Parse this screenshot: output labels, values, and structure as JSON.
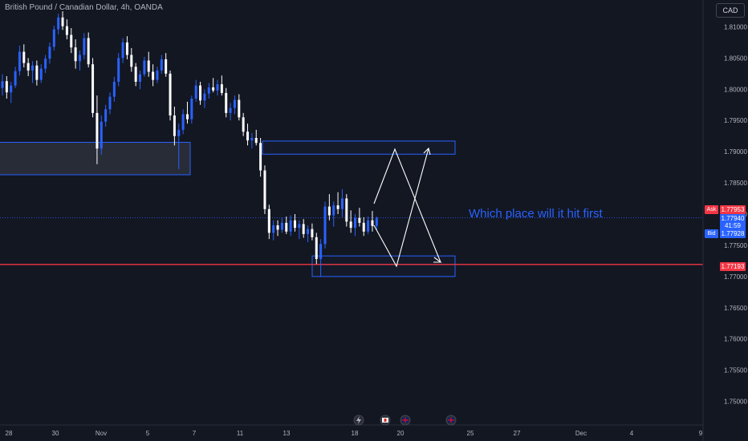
{
  "header": {
    "title": "British Pound / Canadian Dollar, 4h, OANDA",
    "currency_button": "CAD"
  },
  "annotation": {
    "text": "Which place will it hit first"
  },
  "price_labels": {
    "ask_label": "Ask",
    "ask_price": "1.77953",
    "last_price": "1.77940",
    "countdown": "41:59",
    "bid_label": "Bid",
    "bid_price": "1.77928",
    "red_line_price": "1.77193"
  },
  "colors": {
    "background": "#131722",
    "up_candle": "#2962ff",
    "down_candle": "#ffffff",
    "red_line": "#f23645",
    "box_border": "#2962ff",
    "ask_tag": "#f23645",
    "bid_tag": "#2962ff"
  },
  "event_icons": [
    "flash-icon",
    "canada-flag-icon",
    "uk-flag-icon",
    "uk-flag-icon"
  ],
  "chart_data": {
    "type": "candlestick",
    "instrument": "British Pound / Canadian Dollar",
    "timeframe": "4h",
    "ylim": [
      1.7475,
      1.8125
    ],
    "y_ticks": [
      "1.81000",
      "1.80500",
      "1.80000",
      "1.79500",
      "1.79000",
      "1.78500",
      "1.78000",
      "1.77500",
      "1.77000",
      "1.76500",
      "1.76000",
      "1.75500",
      "1.75000"
    ],
    "x_ticks": [
      "28",
      "30",
      "Nov",
      "5",
      "7",
      "11",
      "13",
      "18",
      "20",
      "25",
      "27",
      "Dec",
      "4",
      "9"
    ],
    "horizontal_lines": [
      {
        "price": 1.77193,
        "color": "#f23645"
      },
      {
        "price": 1.7794,
        "style": "dotted"
      }
    ],
    "zones": [
      {
        "price_top": 1.7915,
        "price_bottom": 1.7863
      },
      {
        "price_top": 1.7917,
        "price_bottom": 1.7896
      },
      {
        "price_top": 1.7733,
        "price_bottom": 1.77
      }
    ],
    "candles": [
      [
        1.8002,
        1.8024,
        1.799,
        1.8013
      ],
      [
        1.8013,
        1.8021,
        1.7985,
        1.7995
      ],
      [
        1.7995,
        1.8012,
        1.7978,
        1.8006
      ],
      [
        1.8006,
        1.8036,
        1.8002,
        1.8029
      ],
      [
        1.8029,
        1.807,
        1.8022,
        1.806
      ],
      [
        1.806,
        1.8072,
        1.8035,
        1.8042
      ],
      [
        1.8042,
        1.805,
        1.8021,
        1.803
      ],
      [
        1.803,
        1.8045,
        1.801,
        1.8038
      ],
      [
        1.8038,
        1.8046,
        1.8006,
        1.8015
      ],
      [
        1.8015,
        1.804,
        1.801,
        1.8033
      ],
      [
        1.8033,
        1.8055,
        1.8026,
        1.8049
      ],
      [
        1.8049,
        1.8075,
        1.8041,
        1.8068
      ],
      [
        1.8068,
        1.8102,
        1.8062,
        1.8096
      ],
      [
        1.8096,
        1.8121,
        1.8088,
        1.8115
      ],
      [
        1.8115,
        1.8125,
        1.8095,
        1.8101
      ],
      [
        1.8101,
        1.8112,
        1.808,
        1.8087
      ],
      [
        1.8087,
        1.8098,
        1.8058,
        1.8067
      ],
      [
        1.8067,
        1.808,
        1.8033,
        1.8045
      ],
      [
        1.8045,
        1.8062,
        1.803,
        1.8055
      ],
      [
        1.8055,
        1.809,
        1.8048,
        1.8082
      ],
      [
        1.8082,
        1.8091,
        1.8035,
        1.804
      ],
      [
        1.804,
        1.805,
        1.7955,
        1.7962
      ],
      [
        1.7962,
        1.799,
        1.788,
        1.7905
      ],
      [
        1.7905,
        1.7958,
        1.7895,
        1.7948
      ],
      [
        1.7948,
        1.7975,
        1.794,
        1.7968
      ],
      [
        1.7968,
        1.7995,
        1.796,
        1.7988
      ],
      [
        1.7988,
        1.802,
        1.798,
        1.8012
      ],
      [
        1.8012,
        1.8058,
        1.8005,
        1.805
      ],
      [
        1.805,
        1.8082,
        1.8042,
        1.8075
      ],
      [
        1.8075,
        1.8085,
        1.8048,
        1.8055
      ],
      [
        1.8055,
        1.8066,
        1.8028,
        1.8036
      ],
      [
        1.8036,
        1.8042,
        1.8005,
        1.8012
      ],
      [
        1.8012,
        1.803,
        1.8,
        1.8024
      ],
      [
        1.8024,
        1.8052,
        1.802,
        1.8046
      ],
      [
        1.8046,
        1.806,
        1.802,
        1.8028
      ],
      [
        1.8028,
        1.804,
        1.8005,
        1.8015
      ],
      [
        1.8015,
        1.8036,
        1.801,
        1.803
      ],
      [
        1.803,
        1.8055,
        1.8025,
        1.8048
      ],
      [
        1.8048,
        1.8058,
        1.802,
        1.8025
      ],
      [
        1.8025,
        1.803,
        1.795,
        1.7958
      ],
      [
        1.7958,
        1.7972,
        1.791,
        1.7925
      ],
      [
        1.7925,
        1.7945,
        1.7872,
        1.7935
      ],
      [
        1.7935,
        1.7968,
        1.7928,
        1.796
      ],
      [
        1.796,
        1.798,
        1.7945,
        1.7952
      ],
      [
        1.7952,
        1.799,
        1.7945,
        1.7985
      ],
      [
        1.7985,
        1.8015,
        1.798,
        1.8006
      ],
      [
        1.8006,
        1.8012,
        1.7975,
        1.7982
      ],
      [
        1.7982,
        1.8,
        1.797,
        1.7993
      ],
      [
        1.7993,
        1.801,
        1.7985,
        1.8003
      ],
      [
        1.8003,
        1.8018,
        1.7995,
        1.7998
      ],
      [
        1.7998,
        1.8015,
        1.799,
        1.8008
      ],
      [
        1.8008,
        1.8022,
        1.799,
        1.7994
      ],
      [
        1.7994,
        1.8002,
        1.7955,
        1.7962
      ],
      [
        1.7962,
        1.7978,
        1.795,
        1.797
      ],
      [
        1.797,
        1.799,
        1.796,
        1.7983
      ],
      [
        1.7983,
        1.7992,
        1.795,
        1.7955
      ],
      [
        1.7955,
        1.7962,
        1.7925,
        1.7932
      ],
      [
        1.7932,
        1.7945,
        1.791,
        1.7918
      ],
      [
        1.7918,
        1.793,
        1.7905,
        1.7922
      ],
      [
        1.7922,
        1.7935,
        1.791,
        1.7914
      ],
      [
        1.7914,
        1.7922,
        1.786,
        1.787
      ],
      [
        1.787,
        1.7878,
        1.78,
        1.7808
      ],
      [
        1.7808,
        1.7815,
        1.776,
        1.777
      ],
      [
        1.777,
        1.779,
        1.7758,
        1.7782
      ],
      [
        1.7782,
        1.779,
        1.7765,
        1.7775
      ],
      [
        1.7775,
        1.7795,
        1.777,
        1.7786
      ],
      [
        1.7786,
        1.7796,
        1.7768,
        1.7772
      ],
      [
        1.7772,
        1.7798,
        1.7765,
        1.779
      ],
      [
        1.779,
        1.78,
        1.7772,
        1.7778
      ],
      [
        1.7778,
        1.779,
        1.776,
        1.7784
      ],
      [
        1.7784,
        1.7792,
        1.7762,
        1.7768
      ],
      [
        1.7768,
        1.7782,
        1.7755,
        1.7776
      ],
      [
        1.7776,
        1.7785,
        1.7758,
        1.7763
      ],
      [
        1.7763,
        1.777,
        1.772,
        1.7728
      ],
      [
        1.7728,
        1.776,
        1.77,
        1.7752
      ],
      [
        1.7752,
        1.782,
        1.7745,
        1.7812
      ],
      [
        1.7812,
        1.7832,
        1.779,
        1.7798
      ],
      [
        1.7798,
        1.782,
        1.778,
        1.7814
      ],
      [
        1.7814,
        1.7835,
        1.78,
        1.7808
      ],
      [
        1.7808,
        1.784,
        1.7795,
        1.7825
      ],
      [
        1.7825,
        1.7832,
        1.778,
        1.7788
      ],
      [
        1.7788,
        1.7806,
        1.777,
        1.7778
      ],
      [
        1.7778,
        1.78,
        1.7765,
        1.7794
      ],
      [
        1.7794,
        1.781,
        1.778,
        1.7786
      ],
      [
        1.7786,
        1.7795,
        1.7765,
        1.7772
      ],
      [
        1.7772,
        1.7796,
        1.7768,
        1.779
      ],
      [
        1.779,
        1.7805,
        1.7772,
        1.7781
      ],
      [
        1.7781,
        1.7796,
        1.7775,
        1.7794
      ]
    ]
  }
}
